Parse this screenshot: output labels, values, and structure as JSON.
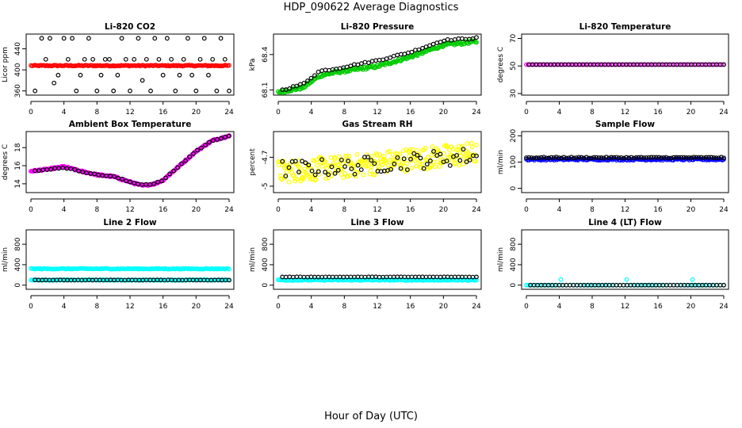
{
  "title": "HDP_090622  Average Diagnostics",
  "x_axis_title": "Hour of Day (UTC)",
  "colors": {
    "black": "#000000",
    "red": "#ff0000",
    "green": "#00cc00",
    "magenta": "#ff00ff",
    "yellow": "#ffff00",
    "blue": "#0000ff",
    "cyan": "#00ffff"
  },
  "chart_data": [
    {
      "type": "scatter",
      "title": "Li-820 CO2",
      "ylabel": "Licor ppm",
      "xlim": [
        0,
        24
      ],
      "xticks": [
        0,
        4,
        8,
        12,
        16,
        20,
        24
      ],
      "ylim": [
        355,
        465
      ],
      "yticks": [
        360,
        400,
        440
      ],
      "series": [
        {
          "color": "red",
          "pattern": "flat",
          "base": 408,
          "noise": 1,
          "x0": 0,
          "x1": 24,
          "n": 150
        },
        {
          "color": "black",
          "pattern": "points",
          "x": [
            0.5,
            1.3,
            1.8,
            2.3,
            2.8,
            3.3,
            4.0,
            4.5,
            5.0,
            5.5,
            6.0,
            6.5,
            7.0,
            7.5,
            8.0,
            8.5,
            9.0,
            9.5,
            10.0,
            10.5,
            11.0,
            11.5,
            12.0,
            12.5,
            13.0,
            13.5,
            14.0,
            14.5,
            15.0,
            15.5,
            16.0,
            16.5,
            17.0,
            17.5,
            18.0,
            18.5,
            19.0,
            19.5,
            20.0,
            20.5,
            21.0,
            21.5,
            22.0,
            22.5,
            23.0,
            23.5,
            24.0
          ],
          "y": [
            360,
            460,
            420,
            460,
            375,
            390,
            460,
            420,
            460,
            360,
            390,
            420,
            460,
            420,
            360,
            390,
            420,
            420,
            360,
            390,
            460,
            420,
            360,
            420,
            460,
            380,
            420,
            360,
            460,
            420,
            390,
            460,
            420,
            360,
            390,
            420,
            460,
            390,
            360,
            420,
            460,
            390,
            420,
            360,
            460,
            420,
            360
          ]
        }
      ]
    },
    {
      "type": "scatter",
      "title": "Li-820 Pressure",
      "ylabel": "kPa",
      "xlim": [
        0,
        24
      ],
      "xticks": [
        0,
        4,
        8,
        12,
        16,
        20,
        24
      ],
      "ylim": [
        68.07,
        68.56
      ],
      "yticks": [
        68.1,
        68.4
      ],
      "series": [
        {
          "color": "green",
          "pattern": "ramp",
          "knots": [
            [
              0,
              68.08
            ],
            [
              3,
              68.12
            ],
            [
              5,
              68.22
            ],
            [
              7,
              68.25
            ],
            [
              9,
              68.27
            ],
            [
              12,
              68.3
            ],
            [
              16,
              68.38
            ],
            [
              20,
              68.48
            ],
            [
              24,
              68.51
            ]
          ],
          "noise": 0.012,
          "n": 200
        },
        {
          "color": "black",
          "pattern": "ramp",
          "knots": [
            [
              0.5,
              68.1
            ],
            [
              3,
              68.15
            ],
            [
              5,
              68.26
            ],
            [
              7,
              68.28
            ],
            [
              9,
              68.31
            ],
            [
              12,
              68.35
            ],
            [
              16,
              68.42
            ],
            [
              20,
              68.52
            ],
            [
              24,
              68.54
            ]
          ],
          "noise": 0.006,
          "n": 55
        }
      ]
    },
    {
      "type": "scatter",
      "title": "Li-820 Temperature",
      "ylabel": "degrees C",
      "xlim": [
        0,
        24
      ],
      "xticks": [
        0,
        4,
        8,
        12,
        16,
        20,
        24
      ],
      "ylim": [
        30,
        72
      ],
      "yticks": [
        30,
        50,
        70
      ],
      "series": [
        {
          "color": "magenta",
          "pattern": "flat",
          "base": 51,
          "noise": 0,
          "x0": 0,
          "x1": 24,
          "n": 110
        },
        {
          "color": "black",
          "pattern": "flat",
          "base": 51,
          "noise": 0,
          "x0": 0.3,
          "x1": 24,
          "n": 55
        }
      ]
    },
    {
      "type": "scatter",
      "title": "Ambient Box Temperature",
      "ylabel": "degrees C",
      "xlim": [
        0,
        24
      ],
      "xticks": [
        0,
        4,
        8,
        12,
        16,
        20,
        24
      ],
      "ylim": [
        13.2,
        19.6
      ],
      "yticks": [
        14,
        16,
        18
      ],
      "series": [
        {
          "color": "magenta",
          "pattern": "ramp",
          "knots": [
            [
              0,
              15.4
            ],
            [
              2,
              15.6
            ],
            [
              4,
              15.9
            ],
            [
              6,
              15.4
            ],
            [
              8,
              15.0
            ],
            [
              10,
              14.8
            ],
            [
              12,
              14.2
            ],
            [
              13.5,
              13.8
            ],
            [
              15,
              14.0
            ],
            [
              16,
              14.4
            ],
            [
              18,
              16.0
            ],
            [
              20,
              17.6
            ],
            [
              22,
              18.8
            ],
            [
              24,
              19.3
            ]
          ],
          "noise": 0.08,
          "n": 220
        },
        {
          "color": "black",
          "pattern": "ramp",
          "knots": [
            [
              0.5,
              15.4
            ],
            [
              2,
              15.6
            ],
            [
              4,
              15.8
            ],
            [
              6,
              15.4
            ],
            [
              8,
              15.0
            ],
            [
              10,
              14.8
            ],
            [
              12,
              14.2
            ],
            [
              13.5,
              13.9
            ],
            [
              15,
              14.0
            ],
            [
              16,
              14.4
            ],
            [
              18,
              16.0
            ],
            [
              20,
              17.6
            ],
            [
              22,
              18.8
            ],
            [
              24,
              19.3
            ]
          ],
          "noise": 0.05,
          "n": 50
        }
      ]
    },
    {
      "type": "scatter",
      "title": "Gas Stream RH",
      "ylabel": "percent",
      "xlim": [
        0,
        24
      ],
      "xticks": [
        0,
        4,
        8,
        12,
        16,
        20,
        24
      ],
      "ylim": [
        -5.05,
        -4.45
      ],
      "yticks": [
        -5.0,
        -4.7
      ],
      "series": [
        {
          "color": "yellow",
          "pattern": "ramp",
          "knots": [
            [
              0,
              -4.85
            ],
            [
              8,
              -4.8
            ],
            [
              16,
              -4.72
            ],
            [
              24,
              -4.66
            ]
          ],
          "noise": 0.12,
          "n": 280
        },
        {
          "color": "black",
          "pattern": "ramp",
          "knots": [
            [
              0.5,
              -4.82
            ],
            [
              8,
              -4.8
            ],
            [
              16,
              -4.74
            ],
            [
              24,
              -4.68
            ]
          ],
          "noise": 0.09,
          "n": 60
        }
      ]
    },
    {
      "type": "scatter",
      "title": "Sample Flow",
      "ylabel": "ml/min",
      "xlim": [
        0,
        24
      ],
      "xticks": [
        0,
        4,
        8,
        12,
        16,
        20,
        24
      ],
      "ylim": [
        -10,
        210
      ],
      "yticks": [
        0,
        100,
        200
      ],
      "series": [
        {
          "color": "blue",
          "pattern": "flat",
          "base": 110,
          "noise": 3,
          "x0": 0,
          "x1": 24,
          "n": 150
        },
        {
          "color": "black",
          "pattern": "flat",
          "base": 117,
          "noise": 2,
          "x0": 0,
          "x1": 24,
          "n": 80
        }
      ]
    },
    {
      "type": "scatter",
      "title": "Line 2 Flow",
      "ylabel": "ml/min",
      "xlim": [
        0,
        24
      ],
      "xticks": [
        0,
        4,
        8,
        12,
        16,
        20,
        24
      ],
      "ylim": [
        -50,
        1050
      ],
      "yticks": [
        0,
        400,
        800
      ],
      "series": [
        {
          "color": "cyan",
          "pattern": "flat",
          "base": 320,
          "noise": 8,
          "x0": 0,
          "x1": 24,
          "n": 150
        },
        {
          "color": "cyan",
          "pattern": "flat",
          "base": 100,
          "noise": 6,
          "x0": 0,
          "x1": 24,
          "n": 150
        },
        {
          "color": "black",
          "pattern": "flat",
          "base": 100,
          "noise": 3,
          "x0": 0.5,
          "x1": 24,
          "n": 55
        }
      ]
    },
    {
      "type": "scatter",
      "title": "Line 3 Flow",
      "ylabel": "ml/min",
      "xlim": [
        0,
        24
      ],
      "xticks": [
        0,
        4,
        8,
        12,
        16,
        20,
        24
      ],
      "ylim": [
        -50,
        1050
      ],
      "yticks": [
        0,
        400,
        800
      ],
      "series": [
        {
          "color": "cyan",
          "pattern": "flat",
          "base": 100,
          "noise": 10,
          "x0": 0,
          "x1": 24,
          "n": 170
        },
        {
          "color": "black",
          "pattern": "flat",
          "base": 160,
          "noise": 3,
          "x0": 0.5,
          "x1": 24,
          "n": 55
        }
      ]
    },
    {
      "type": "scatter",
      "title": "Line 4 (LT) Flow",
      "ylabel": "ml/min",
      "xlim": [
        0,
        24
      ],
      "xticks": [
        0,
        4,
        8,
        12,
        16,
        20,
        24
      ],
      "ylim": [
        -50,
        1050
      ],
      "yticks": [
        0,
        400,
        800
      ],
      "series": [
        {
          "color": "cyan",
          "pattern": "points",
          "x": [
            0.2,
            4.2,
            12.2,
            20.2
          ],
          "y": [
            0,
            110,
            110,
            110
          ]
        },
        {
          "color": "cyan",
          "pattern": "flat",
          "base": 0,
          "noise": 0,
          "x0": 0,
          "x1": 24,
          "n": 60
        },
        {
          "color": "black",
          "pattern": "flat",
          "base": 0,
          "noise": 0,
          "x0": 0.5,
          "x1": 24,
          "n": 55
        }
      ]
    }
  ]
}
